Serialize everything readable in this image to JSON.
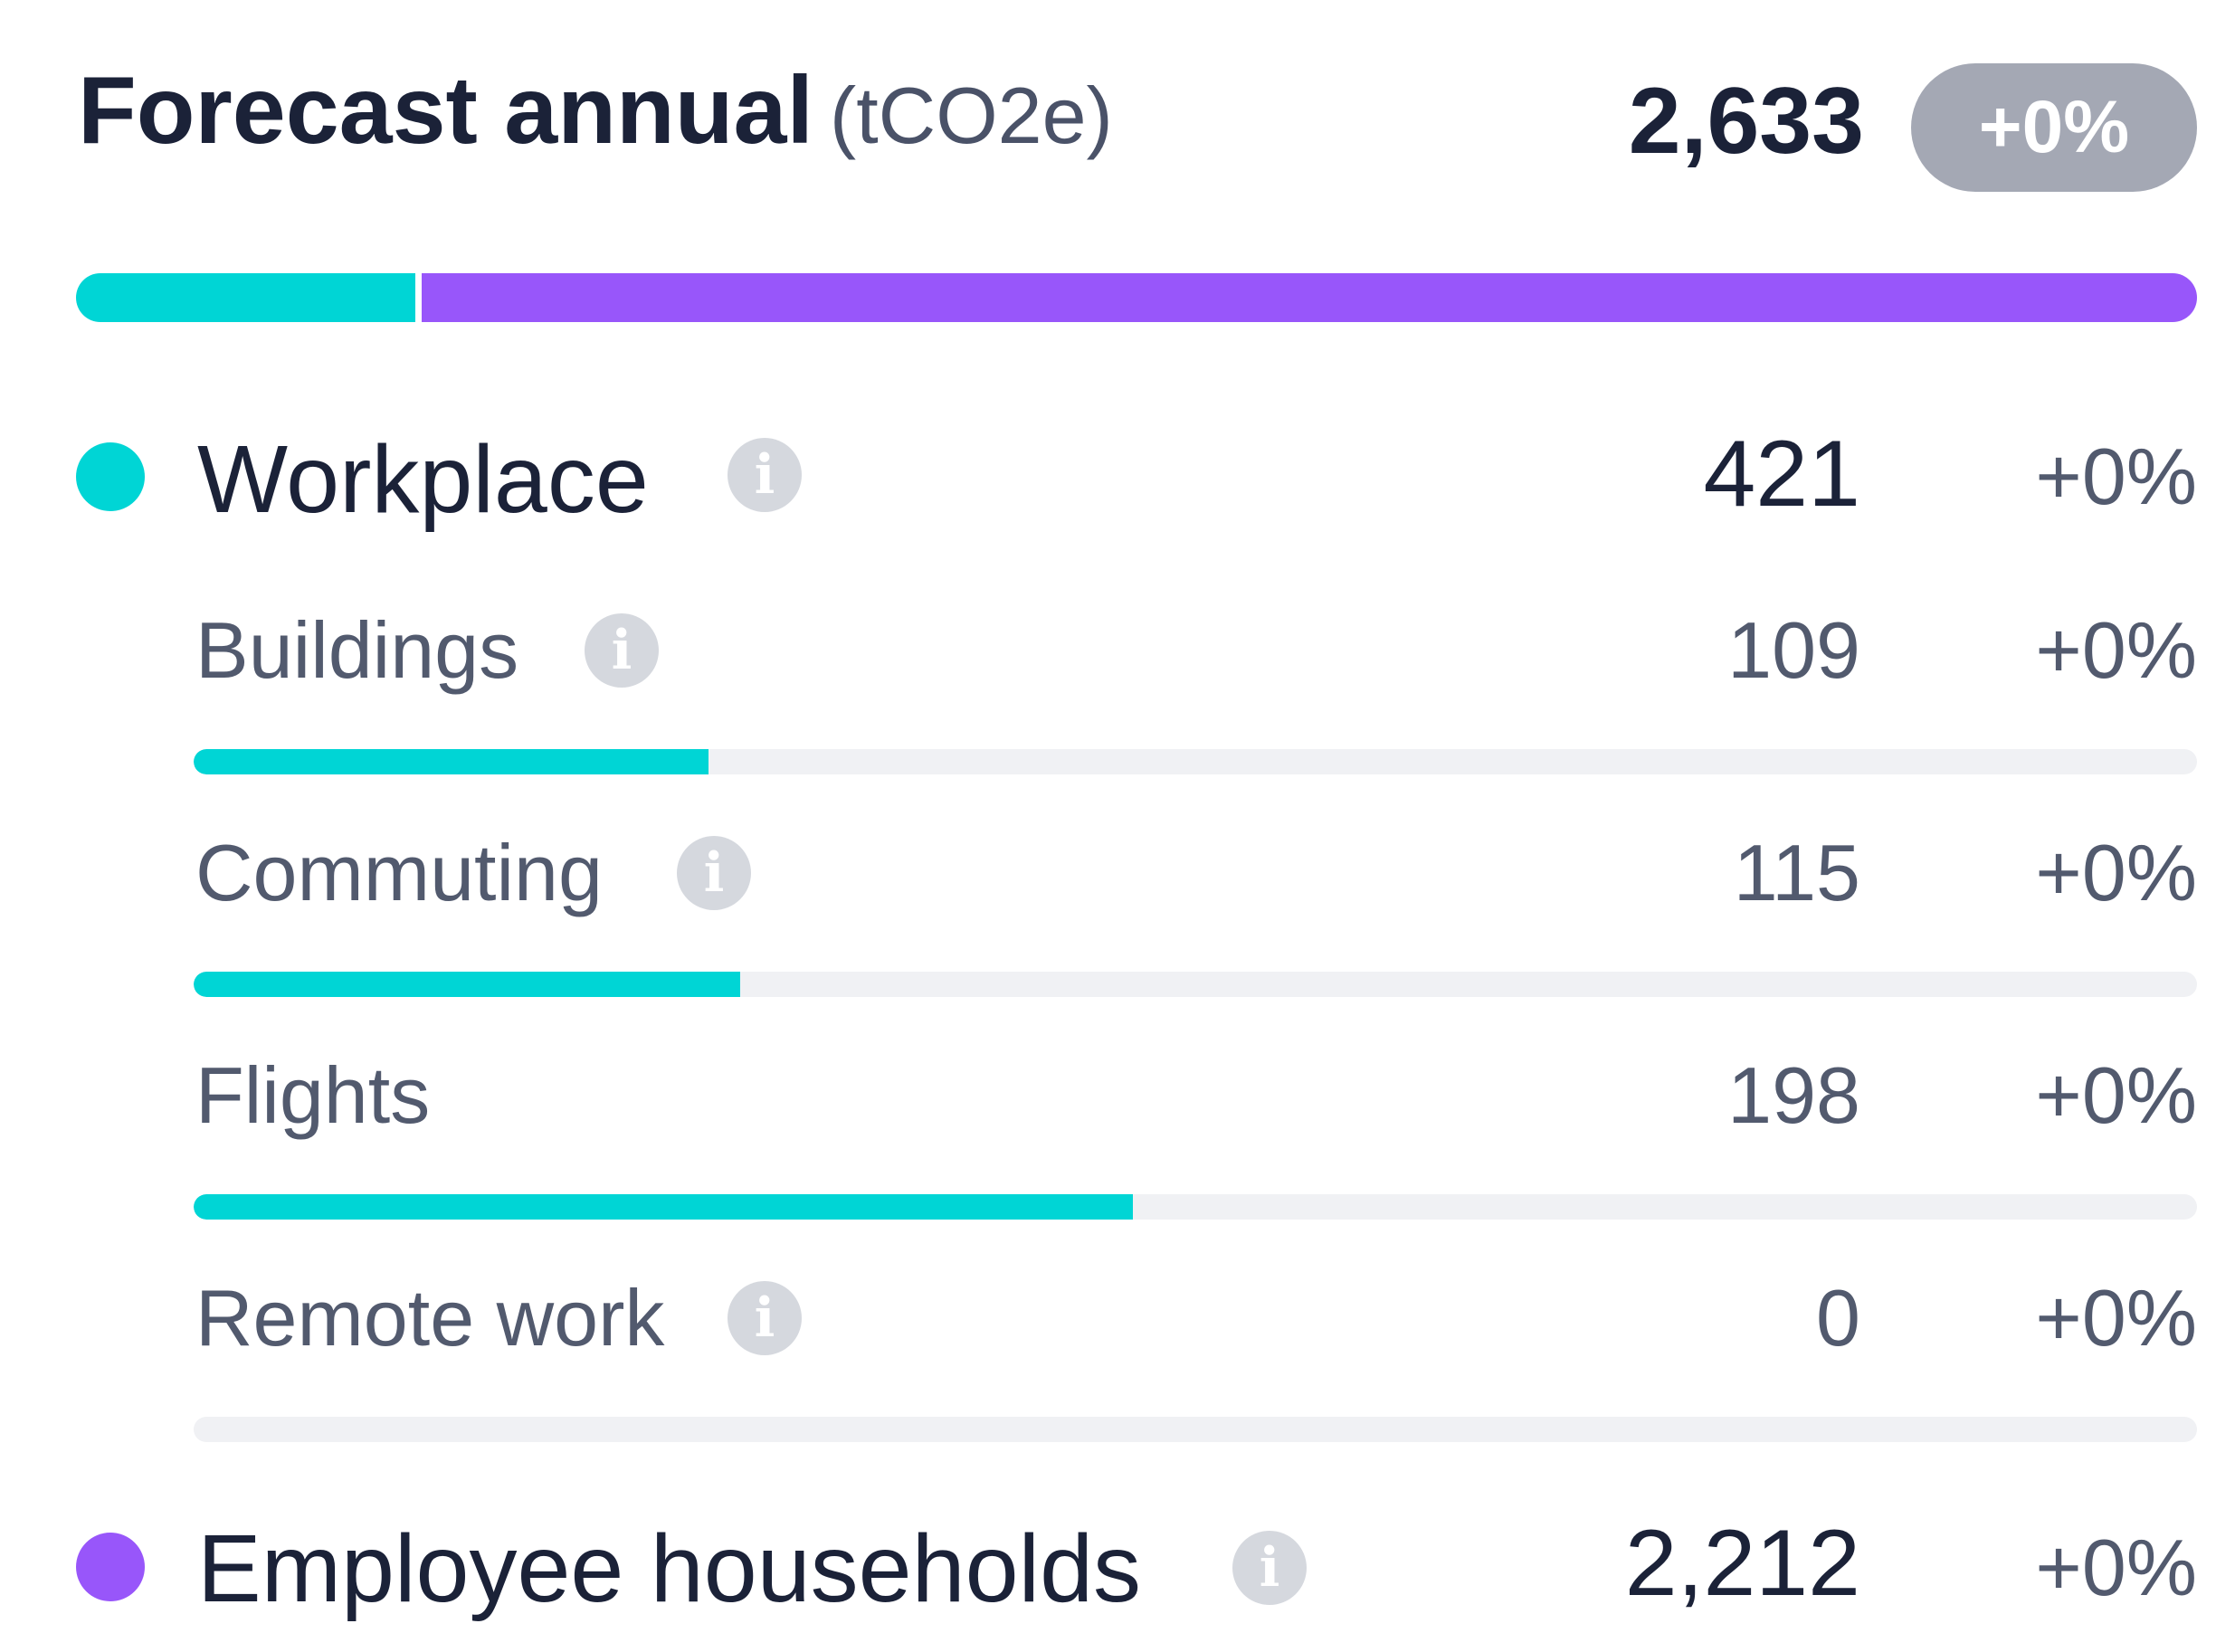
{
  "header": {
    "title": "Forecast annual",
    "unit": "(tCO2e)",
    "total": "2,633",
    "total_change": "+0%"
  },
  "colors": {
    "workplace": "#00d5d5",
    "employee_households": "#9856fa",
    "track": "#f0f1f4",
    "badge": "#a4a8b4"
  },
  "stack_shares": {
    "workplace": 421,
    "employee_households": 2212
  },
  "categories": {
    "workplace": {
      "label": "Workplace",
      "value": "421",
      "change": "+0%"
    },
    "employee_households": {
      "label": "Employee households",
      "value": "2,212",
      "change": "+0%"
    }
  },
  "subcategories": [
    {
      "label": "Buildings",
      "value": "109",
      "change": "+0%",
      "has_info": true,
      "fill_fraction": 0.257
    },
    {
      "label": "Commuting",
      "value": "115",
      "change": "+0%",
      "has_info": true,
      "fill_fraction": 0.273
    },
    {
      "label": "Flights",
      "value": "198",
      "change": "+0%",
      "has_info": false,
      "fill_fraction": 0.469
    },
    {
      "label": "Remote work",
      "value": "0",
      "change": "+0%",
      "has_info": true,
      "fill_fraction": 0
    }
  ],
  "icons": {
    "info": "i"
  }
}
